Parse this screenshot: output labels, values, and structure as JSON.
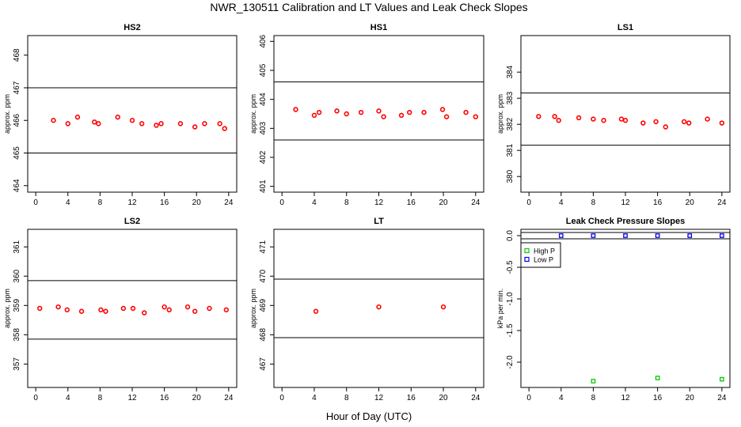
{
  "figure": {
    "title": "NWR_130511  Calibration and LT Values and Leak Check Slopes",
    "xlabel": "Hour of Day (UTC)"
  },
  "colors": {
    "calibration_points": "#ff0000",
    "high_p": "#00cc00",
    "low_p": "#0000ff",
    "axes": "#000000"
  },
  "chart_data": [
    {
      "type": "scatter",
      "title": "HS2",
      "ylabel": "approx. ppm",
      "xlim": [
        -1,
        25
      ],
      "ylim": [
        463.8,
        468.6
      ],
      "xticks": [
        0,
        4,
        8,
        12,
        16,
        20,
        24
      ],
      "yticks": [
        464,
        465,
        466,
        467,
        468
      ],
      "hlines": [
        465.0,
        467.0
      ],
      "series": [
        {
          "color": "#ff0000",
          "x": [
            2.2,
            4.0,
            5.2,
            7.3,
            7.8,
            10.2,
            12.0,
            13.2,
            15.0,
            15.6,
            18.0,
            19.8,
            21.0,
            22.9,
            23.5
          ],
          "y": [
            466.0,
            465.9,
            466.1,
            465.95,
            465.9,
            466.1,
            466.0,
            465.9,
            465.85,
            465.9,
            465.9,
            465.8,
            465.9,
            465.9,
            465.75
          ]
        }
      ]
    },
    {
      "type": "scatter",
      "title": "HS1",
      "ylabel": "approx. ppm",
      "xlim": [
        -1,
        25
      ],
      "ylim": [
        400.8,
        406.2
      ],
      "xticks": [
        0,
        4,
        8,
        12,
        16,
        20,
        24
      ],
      "yticks": [
        401,
        402,
        403,
        404,
        405,
        406
      ],
      "hlines": [
        402.6,
        404.6
      ],
      "series": [
        {
          "color": "#ff0000",
          "x": [
            1.7,
            4.0,
            4.6,
            6.8,
            8.0,
            9.8,
            12.0,
            12.6,
            14.8,
            15.8,
            17.6,
            19.9,
            20.4,
            22.8,
            24.0
          ],
          "y": [
            403.65,
            403.45,
            403.55,
            403.6,
            403.5,
            403.55,
            403.6,
            403.4,
            403.45,
            403.55,
            403.55,
            403.65,
            403.4,
            403.55,
            403.4
          ]
        }
      ]
    },
    {
      "type": "scatter",
      "title": "LS1",
      "ylabel": "approx. ppm",
      "xlim": [
        -1,
        25
      ],
      "ylim": [
        379.4,
        385.4
      ],
      "xticks": [
        0,
        4,
        8,
        12,
        16,
        20,
        24
      ],
      "yticks": [
        380,
        381,
        382,
        383,
        384
      ],
      "hlines": [
        381.2,
        383.2
      ],
      "series": [
        {
          "color": "#ff0000",
          "x": [
            1.2,
            3.2,
            3.7,
            6.2,
            8.0,
            9.3,
            11.5,
            12.0,
            14.2,
            15.8,
            17.0,
            19.3,
            19.9,
            22.2,
            24.0
          ],
          "y": [
            382.3,
            382.3,
            382.15,
            382.25,
            382.2,
            382.15,
            382.2,
            382.15,
            382.05,
            382.1,
            381.9,
            382.1,
            382.05,
            382.2,
            382.05
          ]
        }
      ]
    },
    {
      "type": "scatter",
      "title": "LS2",
      "ylabel": "approx. ppm",
      "xlim": [
        -1,
        25
      ],
      "ylim": [
        356.2,
        361.6
      ],
      "xticks": [
        0,
        4,
        8,
        12,
        16,
        20,
        24
      ],
      "yticks": [
        357,
        358,
        359,
        360,
        361
      ],
      "hlines": [
        357.85,
        359.85
      ],
      "series": [
        {
          "color": "#ff0000",
          "x": [
            0.5,
            2.8,
            3.9,
            5.7,
            8.1,
            8.7,
            10.9,
            12.1,
            13.5,
            16.0,
            16.6,
            18.9,
            19.8,
            21.6,
            23.7
          ],
          "y": [
            358.9,
            358.95,
            358.85,
            358.8,
            358.85,
            358.8,
            358.9,
            358.9,
            358.75,
            358.95,
            358.85,
            358.95,
            358.8,
            358.9,
            358.85
          ]
        }
      ]
    },
    {
      "type": "scatter",
      "title": "LT",
      "ylabel": "approx. ppm",
      "xlim": [
        -1,
        25
      ],
      "ylim": [
        466.2,
        471.6
      ],
      "xticks": [
        0,
        4,
        8,
        12,
        16,
        20,
        24
      ],
      "yticks": [
        467,
        468,
        469,
        470,
        471
      ],
      "hlines": [
        467.9,
        469.9
      ],
      "series": [
        {
          "color": "#ff0000",
          "x": [
            4.2,
            12.0,
            20.0
          ],
          "y": [
            468.8,
            468.95,
            468.95
          ]
        }
      ]
    },
    {
      "type": "scatter",
      "title": "Leak Check Pressure Slopes",
      "ylabel": "kPa per min.",
      "xlim": [
        -1,
        25
      ],
      "ylim": [
        -2.4,
        0.1
      ],
      "xticks": [
        0,
        4,
        8,
        12,
        16,
        20,
        24
      ],
      "yticks": [
        0.0,
        -0.5,
        -1.0,
        -1.5,
        -2.0
      ],
      "ytick_labels": [
        "0.0",
        "-0.5",
        "-1.0",
        "-1.5",
        "-2.0"
      ],
      "hlines": [
        0.05,
        -0.05
      ],
      "legend": {
        "position": "top-left",
        "entries": [
          "High P",
          "Low P"
        ]
      },
      "series": [
        {
          "name": "High P",
          "color": "#00cc00",
          "x": [
            8.0,
            16.0,
            24.0
          ],
          "y": [
            -2.3,
            -2.25,
            -2.27
          ]
        },
        {
          "name": "Low P",
          "color": "#0000ff",
          "x": [
            4.0,
            8.0,
            12.0,
            16.0,
            20.0,
            24.0
          ],
          "y": [
            0.0,
            0.0,
            0.0,
            0.0,
            0.0,
            0.0
          ]
        }
      ]
    }
  ]
}
